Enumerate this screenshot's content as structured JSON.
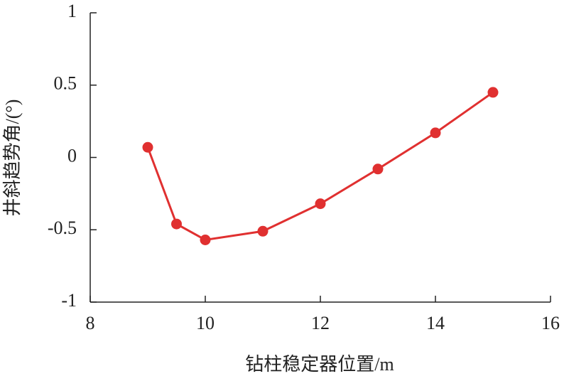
{
  "chart_data": {
    "type": "line",
    "x_label": "钻柱稳定器位置/m",
    "y_label": "井斜趋势角/(°)",
    "x": [
      9,
      9.5,
      10,
      11,
      12,
      13,
      14,
      15
    ],
    "series": [
      {
        "color": "#e03030",
        "values": [
          0.07,
          -0.46,
          -0.57,
          -0.51,
          -0.32,
          -0.08,
          0.17,
          0.45
        ]
      }
    ],
    "xlim": [
      8,
      16
    ],
    "xticks": [
      8,
      10,
      12,
      14,
      16
    ],
    "ylim": [
      -1,
      1
    ],
    "yticks": [
      -1,
      -0.5,
      0,
      0.5,
      1
    ],
    "grid": false
  }
}
